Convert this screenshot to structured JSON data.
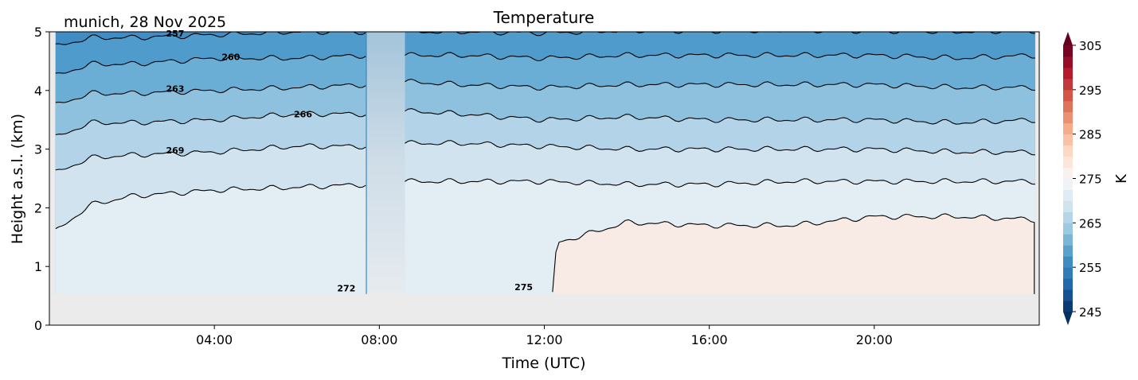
{
  "chart_data": {
    "type": "heatmap",
    "title": "Temperature",
    "subtitle": "munich, 28 Nov 2025",
    "xlabel": "Time (UTC)",
    "ylabel": "Height a.s.l. (km)",
    "xlim_hours": [
      0,
      24
    ],
    "ylim": [
      0,
      5
    ],
    "xticks": [
      {
        "v": 4,
        "label": "04:00"
      },
      {
        "v": 8,
        "label": "08:00"
      },
      {
        "v": 12,
        "label": "12:00"
      },
      {
        "v": 16,
        "label": "16:00"
      },
      {
        "v": 20,
        "label": "20:00"
      }
    ],
    "yticks": [
      {
        "v": 0,
        "label": "0"
      },
      {
        "v": 1,
        "label": "1"
      },
      {
        "v": 2,
        "label": "2"
      },
      {
        "v": 3,
        "label": "3"
      },
      {
        "v": 4,
        "label": "4"
      },
      {
        "v": 5,
        "label": "5"
      }
    ],
    "data_gap_hours": [
      7.7,
      8.62
    ],
    "data_range_hours": [
      0.15,
      23.9
    ],
    "min_height_km": 0.53,
    "segments": [
      {
        "times": [
          0.15,
          1,
          2,
          4,
          6,
          7.7
        ]
      },
      {
        "times": [
          8.62,
          10,
          12,
          14,
          16,
          18,
          20,
          22,
          23.9
        ]
      }
    ],
    "isolines": [
      {
        "level": 257,
        "label": "257",
        "seg": [
          [
            4.75,
            4.9,
            4.9,
            4.95,
            5.0,
            5.0
          ],
          [
            5.0,
            5.0,
            4.98,
            5.02,
            5.02,
            5.02,
            5.02,
            5.0,
            5.02
          ]
        ],
        "label_at": [
          3.05,
          4.97
        ]
      },
      {
        "level": 260,
        "label": "260",
        "seg": [
          [
            4.25,
            4.45,
            4.45,
            4.55,
            4.55,
            4.6
          ],
          [
            4.6,
            4.6,
            4.55,
            4.6,
            4.6,
            4.6,
            4.6,
            4.55,
            4.6
          ]
        ],
        "label_at": [
          4.4,
          4.57
        ]
      },
      {
        "level": 263,
        "label": "263",
        "seg": [
          [
            3.75,
            3.95,
            3.95,
            4.0,
            4.05,
            4.1
          ],
          [
            4.15,
            4.1,
            4.05,
            4.1,
            4.1,
            4.1,
            4.1,
            4.05,
            4.05
          ]
        ],
        "label_at": [
          3.05,
          4.03
        ]
      },
      {
        "level": 266,
        "label": "266",
        "seg": [
          [
            3.2,
            3.45,
            3.45,
            3.5,
            3.6,
            3.6
          ],
          [
            3.65,
            3.6,
            3.5,
            3.55,
            3.5,
            3.5,
            3.5,
            3.45,
            3.5
          ]
        ],
        "label_at": [
          6.15,
          3.6
        ]
      },
      {
        "level": 269,
        "label": "269",
        "seg": [
          [
            2.6,
            2.85,
            2.9,
            2.95,
            3.05,
            3.05
          ],
          [
            3.1,
            3.1,
            3.05,
            3.0,
            3.0,
            3.0,
            3.0,
            2.95,
            2.95
          ]
        ],
        "label_at": [
          3.05,
          2.98
        ]
      },
      {
        "level": 272,
        "label": "272",
        "seg": [
          [
            1.6,
            2.05,
            2.2,
            2.3,
            2.35,
            2.4
          ],
          [
            2.45,
            2.45,
            2.45,
            2.4,
            2.4,
            2.45,
            2.45,
            2.45,
            2.45
          ]
        ],
        "label_at": [
          7.2,
          0.63
        ]
      }
    ],
    "warm_region": {
      "level": 275,
      "label": "275",
      "times": [
        12.2,
        12.3,
        14,
        16,
        18,
        20,
        22,
        23.9
      ],
      "top": [
        0.53,
        1.4,
        1.75,
        1.7,
        1.7,
        1.85,
        1.85,
        1.8
      ],
      "label_at": [
        11.5,
        0.65
      ]
    },
    "band_colors": {
      "above_257": "#3f8dc3",
      "257_260": "#4f9bcb",
      "260_263": "#6aaed6",
      "263_266": "#8ec1de",
      "266_269": "#b2d3e8",
      "269_272": "#d0e3ef",
      "272_275": "#e3edf4",
      "above_275": "#f8ebe6"
    },
    "colorbar": {
      "label": "K",
      "min": 245,
      "max": 305,
      "step": 2.5,
      "ticks": [
        "245",
        "255",
        "265",
        "275",
        "285",
        "295",
        "305"
      ],
      "extend": "both"
    }
  }
}
